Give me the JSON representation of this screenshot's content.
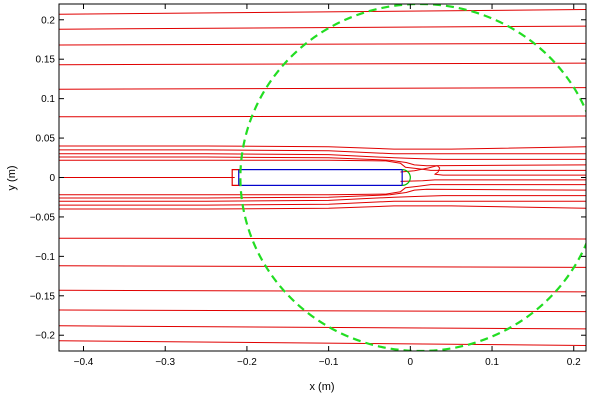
{
  "chart_data": {
    "type": "line",
    "title": "",
    "xlabel": "x (m)",
    "ylabel": "y (m)",
    "xlim": [
      -0.43,
      0.215
    ],
    "ylim": [
      -0.22,
      0.22
    ],
    "xticks": [
      -0.4,
      -0.3,
      -0.2,
      -0.1,
      0,
      0.1,
      0.2
    ],
    "xtick_labels": [
      "−0.4",
      "−0.3",
      "−0.2",
      "−0.1",
      "0",
      "0.1",
      "0.2"
    ],
    "yticks": [
      0.2,
      0.15,
      0.1,
      0.05,
      0,
      -0.05,
      -0.1,
      -0.15,
      -0.2
    ],
    "ytick_labels": [
      "0.2",
      "0.15",
      "0.1",
      "0.05",
      "0",
      "−0.05",
      "−0.1",
      "−0.15",
      "−0.2"
    ],
    "grid": false,
    "colors": {
      "streamline": "#e00000",
      "body": "#0000cc",
      "nose": "#00bb00",
      "circle": "#22dd22"
    },
    "streamlines": [
      {
        "points": [
          [
            -0.43,
            0.207
          ],
          [
            0.215,
            0.213
          ]
        ]
      },
      {
        "points": [
          [
            -0.43,
            0.188
          ],
          [
            0.215,
            0.192
          ]
        ]
      },
      {
        "points": [
          [
            -0.43,
            0.168
          ],
          [
            0.215,
            0.17
          ]
        ]
      },
      {
        "points": [
          [
            -0.43,
            0.143
          ],
          [
            0.215,
            0.145
          ]
        ]
      },
      {
        "points": [
          [
            -0.43,
            0.112
          ],
          [
            0.215,
            0.114
          ]
        ]
      },
      {
        "points": [
          [
            -0.43,
            0.077
          ],
          [
            0.215,
            0.078
          ]
        ]
      },
      {
        "points": [
          [
            -0.43,
            0.04
          ],
          [
            -0.25,
            0.04
          ],
          [
            -0.1,
            0.039
          ],
          [
            -0.02,
            0.036
          ],
          [
            0.05,
            0.036
          ],
          [
            0.215,
            0.039
          ]
        ]
      },
      {
        "points": [
          [
            -0.43,
            0.035
          ],
          [
            -0.25,
            0.035
          ],
          [
            -0.1,
            0.034
          ],
          [
            -0.02,
            0.03
          ],
          [
            0.02,
            0.03
          ],
          [
            0.06,
            0.03
          ],
          [
            0.215,
            0.03
          ]
        ]
      },
      {
        "points": [
          [
            -0.43,
            0.03
          ],
          [
            -0.25,
            0.03
          ],
          [
            -0.1,
            0.029
          ],
          [
            -0.02,
            0.025
          ],
          [
            0.01,
            0.024
          ],
          [
            0.04,
            0.023
          ],
          [
            0.215,
            0.023
          ]
        ]
      },
      {
        "points": [
          [
            -0.43,
            0.026
          ],
          [
            -0.25,
            0.026
          ],
          [
            -0.1,
            0.025
          ],
          [
            -0.025,
            0.022
          ],
          [
            -0.005,
            0.019
          ],
          [
            0.005,
            0.016
          ],
          [
            0.02,
            0.015
          ],
          [
            0.215,
            0.016
          ]
        ]
      },
      {
        "points": [
          [
            -0.43,
            0.022
          ],
          [
            -0.25,
            0.022
          ],
          [
            -0.1,
            0.022
          ],
          [
            -0.03,
            0.021
          ],
          [
            -0.012,
            0.018
          ],
          [
            -0.006,
            0.013
          ],
          [
            0.01,
            0.011
          ],
          [
            0.025,
            0.009
          ],
          [
            0.215,
            0.009
          ]
        ]
      },
      {
        "points": [
          [
            -0.43,
            0.0
          ],
          [
            -0.215,
            0.0
          ]
        ]
      },
      {
        "points": [
          [
            -0.012,
            0.007
          ],
          [
            0.005,
            0.0085
          ],
          [
            0.022,
            0.012
          ],
          [
            0.033,
            0.015
          ],
          [
            0.036,
            0.012
          ],
          [
            0.034,
            0.007
          ],
          [
            0.03,
            0.004
          ],
          [
            0.04,
            0.003
          ],
          [
            0.215,
            0.003
          ]
        ]
      },
      {
        "points": [
          [
            -0.012,
            -0.005
          ],
          [
            0.015,
            -0.004
          ],
          [
            0.03,
            -0.003
          ],
          [
            0.215,
            -0.003
          ]
        ]
      },
      {
        "points": [
          [
            -0.43,
            -0.022
          ],
          [
            -0.25,
            -0.022
          ],
          [
            -0.1,
            -0.022
          ],
          [
            -0.03,
            -0.021
          ],
          [
            -0.012,
            -0.018
          ],
          [
            -0.006,
            -0.013
          ],
          [
            0.01,
            -0.011
          ],
          [
            0.025,
            -0.009
          ],
          [
            0.215,
            -0.009
          ]
        ]
      },
      {
        "points": [
          [
            -0.43,
            -0.026
          ],
          [
            -0.25,
            -0.026
          ],
          [
            -0.1,
            -0.025
          ],
          [
            -0.025,
            -0.022
          ],
          [
            -0.005,
            -0.019
          ],
          [
            0.005,
            -0.016
          ],
          [
            0.02,
            -0.015
          ],
          [
            0.215,
            -0.016
          ]
        ]
      },
      {
        "points": [
          [
            -0.43,
            -0.03
          ],
          [
            -0.25,
            -0.03
          ],
          [
            -0.1,
            -0.029
          ],
          [
            -0.02,
            -0.025
          ],
          [
            0.01,
            -0.024
          ],
          [
            0.04,
            -0.023
          ],
          [
            0.215,
            -0.023
          ]
        ]
      },
      {
        "points": [
          [
            -0.43,
            -0.035
          ],
          [
            -0.25,
            -0.035
          ],
          [
            -0.1,
            -0.034
          ],
          [
            -0.02,
            -0.03
          ],
          [
            0.02,
            -0.03
          ],
          [
            0.06,
            -0.03
          ],
          [
            0.215,
            -0.03
          ]
        ]
      },
      {
        "points": [
          [
            -0.43,
            -0.04
          ],
          [
            -0.25,
            -0.04
          ],
          [
            -0.1,
            -0.039
          ],
          [
            -0.02,
            -0.036
          ],
          [
            0.05,
            -0.036
          ],
          [
            0.215,
            -0.039
          ]
        ]
      },
      {
        "points": [
          [
            -0.43,
            -0.077
          ],
          [
            0.215,
            -0.078
          ]
        ]
      },
      {
        "points": [
          [
            -0.43,
            -0.112
          ],
          [
            0.215,
            -0.114
          ]
        ]
      },
      {
        "points": [
          [
            -0.43,
            -0.143
          ],
          [
            0.215,
            -0.145
          ]
        ]
      },
      {
        "points": [
          [
            -0.43,
            -0.168
          ],
          [
            0.215,
            -0.17
          ]
        ]
      },
      {
        "points": [
          [
            -0.43,
            -0.188
          ],
          [
            0.215,
            -0.192
          ]
        ]
      },
      {
        "points": [
          [
            -0.43,
            -0.207
          ],
          [
            0.215,
            -0.213
          ]
        ]
      }
    ],
    "body": {
      "x0": -0.21,
      "x1": -0.01,
      "y0": -0.01,
      "y1": 0.01
    },
    "tail_cap": {
      "points": [
        [
          -0.21,
          0.01
        ],
        [
          -0.218,
          0.01
        ],
        [
          -0.218,
          -0.01
        ],
        [
          -0.21,
          -0.01
        ]
      ]
    },
    "nose_cap": {
      "cx": -0.01,
      "cy": 0.0,
      "r": 0.01
    },
    "domain_circle": {
      "cx": 0.012,
      "cy": 0.0,
      "r": 0.22
    }
  }
}
